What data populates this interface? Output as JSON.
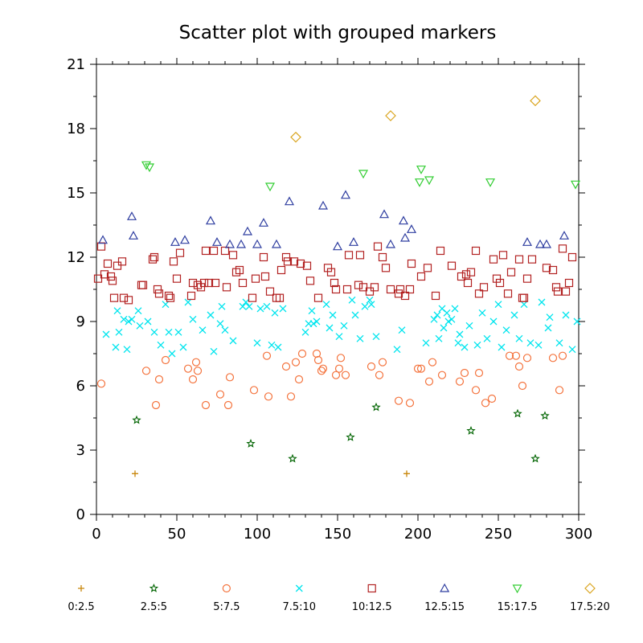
{
  "chart_data": {
    "type": "scatter",
    "title": "Scatter plot with grouped markers",
    "xlabel": "",
    "ylabel": "",
    "xlim": [
      0,
      300
    ],
    "ylim": [
      0,
      21
    ],
    "x_ticks": [
      0,
      50,
      100,
      150,
      200,
      250,
      300
    ],
    "y_ticks": [
      0,
      3,
      6,
      9,
      12,
      15,
      18,
      21
    ],
    "grid": false,
    "legend_position": "bottom",
    "series": [
      {
        "name": "0:2.5",
        "marker": "plus",
        "color": "#c8860a",
        "x": [
          24,
          193
        ],
        "y": [
          1.9,
          1.9
        ]
      },
      {
        "name": "2.5:5",
        "marker": "star",
        "color": "#006400",
        "x": [
          25,
          96,
          122,
          158,
          174,
          233,
          262,
          273,
          279
        ],
        "y": [
          4.4,
          3.3,
          2.6,
          3.6,
          5.0,
          3.9,
          4.7,
          2.6,
          4.6
        ]
      },
      {
        "name": "5:7.5",
        "marker": "circle",
        "color": "#f4733d",
        "x": [
          3,
          31,
          37,
          39,
          43,
          57,
          60,
          62,
          63,
          68,
          77,
          82,
          83,
          98,
          106,
          107,
          118,
          121,
          124,
          126,
          128,
          137,
          138,
          140,
          141,
          149,
          151,
          152,
          155,
          171,
          176,
          178,
          188,
          195,
          200,
          202,
          207,
          209,
          215,
          226,
          229,
          236,
          238,
          242,
          246,
          257,
          261,
          263,
          265,
          268,
          284,
          288,
          290
        ],
        "y": [
          6.1,
          6.7,
          5.1,
          6.3,
          7.2,
          6.8,
          6.3,
          7.1,
          6.7,
          5.1,
          5.6,
          5.1,
          6.4,
          5.8,
          7.4,
          5.5,
          6.9,
          5.5,
          7.1,
          6.3,
          7.5,
          7.5,
          7.2,
          6.7,
          6.8,
          6.5,
          6.8,
          7.3,
          6.5,
          6.9,
          6.5,
          7.1,
          5.3,
          5.2,
          6.8,
          6.8,
          6.2,
          7.1,
          6.5,
          6.2,
          6.6,
          5.8,
          6.6,
          5.2,
          5.4,
          7.4,
          7.4,
          6.9,
          6.0,
          7.3,
          7.3,
          5.8,
          7.4
        ]
      },
      {
        "name": "7.5:10",
        "marker": "x",
        "color": "#00e5ee",
        "x": [
          6,
          12,
          13,
          14,
          17,
          19,
          20,
          22,
          26,
          27,
          32,
          36,
          40,
          43,
          45,
          47,
          51,
          54,
          57,
          60,
          66,
          71,
          73,
          77,
          78,
          80,
          85,
          91,
          93,
          95,
          100,
          102,
          106,
          109,
          111,
          113,
          116,
          130,
          132,
          134,
          135,
          137,
          143,
          145,
          147,
          151,
          154,
          159,
          161,
          164,
          167,
          170,
          171,
          174,
          187,
          190,
          205,
          210,
          212,
          213,
          215,
          216,
          218,
          219,
          221,
          223,
          225,
          226,
          229,
          232,
          237,
          240,
          243,
          247,
          250,
          252,
          255,
          260,
          263,
          266,
          270,
          275,
          277,
          281,
          282,
          288,
          292,
          296,
          299
        ],
        "y": [
          8.4,
          7.8,
          9.5,
          8.5,
          9.1,
          7.7,
          9.0,
          9.1,
          9.5,
          8.8,
          9.0,
          8.5,
          7.9,
          9.8,
          8.5,
          7.5,
          8.5,
          7.8,
          9.9,
          9.1,
          8.6,
          9.3,
          7.6,
          8.9,
          9.7,
          8.6,
          8.1,
          9.7,
          9.9,
          9.7,
          8.0,
          9.6,
          9.7,
          7.9,
          9.4,
          7.8,
          9.6,
          8.5,
          8.9,
          9.5,
          8.9,
          9.0,
          9.8,
          8.7,
          9.3,
          8.3,
          8.8,
          10.0,
          9.3,
          8.2,
          9.7,
          10.0,
          9.8,
          8.3,
          7.7,
          8.6,
          8.0,
          9.1,
          9.3,
          8.2,
          9.6,
          8.7,
          9.4,
          9.0,
          9.1,
          9.6,
          8.0,
          8.4,
          7.8,
          8.8,
          7.9,
          9.4,
          8.2,
          9.0,
          9.8,
          7.8,
          8.6,
          9.3,
          8.2,
          9.8,
          8.0,
          7.9,
          9.9,
          8.7,
          9.2,
          8.0,
          9.3,
          7.7,
          9.0
        ]
      },
      {
        "name": "10:12.5",
        "marker": "square",
        "color": "#b22222",
        "x": [
          1,
          3,
          5,
          7,
          9,
          10,
          11,
          13,
          16,
          17,
          20,
          28,
          29,
          35,
          36,
          38,
          39,
          45,
          46,
          48,
          50,
          52,
          59,
          60,
          63,
          65,
          67,
          68,
          70,
          73,
          74,
          80,
          81,
          85,
          87,
          89,
          91,
          97,
          99,
          104,
          105,
          108,
          112,
          114,
          115,
          118,
          119,
          123,
          127,
          131,
          133,
          138,
          144,
          146,
          148,
          149,
          156,
          157,
          163,
          164,
          166,
          170,
          173,
          175,
          178,
          180,
          183,
          188,
          189,
          192,
          195,
          196,
          202,
          206,
          211,
          214,
          221,
          227,
          230,
          231,
          233,
          236,
          238,
          241,
          247,
          249,
          251,
          253,
          256,
          258,
          263,
          265,
          266,
          268,
          271,
          280,
          284,
          286,
          287,
          290,
          292,
          294,
          296
        ],
        "y": [
          11.0,
          12.5,
          11.2,
          11.7,
          11.1,
          10.9,
          10.1,
          11.6,
          11.8,
          10.1,
          10.0,
          10.7,
          10.7,
          11.9,
          12.0,
          10.5,
          10.3,
          10.2,
          10.1,
          11.8,
          11.0,
          12.2,
          10.2,
          10.8,
          10.7,
          10.6,
          10.8,
          12.3,
          10.8,
          12.3,
          10.8,
          12.3,
          10.6,
          12.1,
          11.3,
          11.4,
          10.8,
          10.1,
          11.0,
          12.0,
          11.1,
          10.4,
          10.1,
          10.1,
          11.4,
          12.0,
          11.8,
          11.8,
          11.7,
          11.6,
          10.9,
          10.1,
          11.5,
          11.3,
          10.8,
          10.5,
          10.5,
          12.1,
          10.7,
          12.1,
          10.6,
          10.4,
          10.6,
          12.5,
          12.0,
          11.5,
          10.5,
          10.3,
          10.5,
          10.2,
          10.5,
          11.7,
          11.1,
          11.5,
          10.2,
          12.3,
          11.6,
          11.1,
          11.2,
          10.8,
          11.3,
          12.3,
          10.3,
          10.6,
          11.9,
          11.0,
          10.8,
          12.1,
          10.3,
          11.3,
          11.9,
          10.1,
          10.1,
          11.0,
          11.9,
          11.5,
          11.4,
          10.6,
          10.4,
          12.4,
          10.4,
          10.8,
          12.0
        ]
      },
      {
        "name": "12.5:15",
        "marker": "triangle-up",
        "color": "#2f3ea0",
        "x": [
          4,
          22,
          23,
          49,
          55,
          71,
          75,
          83,
          90,
          94,
          100,
          104,
          112,
          120,
          141,
          150,
          155,
          160,
          179,
          183,
          191,
          192,
          196,
          268,
          276,
          280,
          291
        ],
        "y": [
          12.8,
          13.9,
          13.0,
          12.7,
          12.8,
          13.7,
          12.7,
          12.6,
          12.6,
          13.2,
          12.6,
          13.6,
          12.6,
          14.6,
          14.4,
          12.5,
          14.9,
          12.7,
          14.0,
          12.6,
          13.7,
          12.9,
          13.3,
          12.7,
          12.6,
          12.6,
          13.0
        ]
      },
      {
        "name": "15:17.5",
        "marker": "triangle-down",
        "color": "#32cd32",
        "x": [
          31,
          33,
          108,
          166,
          201,
          202,
          207,
          245,
          298
        ],
        "y": [
          16.3,
          16.2,
          15.3,
          15.9,
          15.5,
          16.1,
          15.6,
          15.5,
          15.4
        ]
      },
      {
        "name": "17.5:20",
        "marker": "diamond",
        "color": "#daa520",
        "x": [
          124,
          183,
          273
        ],
        "y": [
          17.6,
          18.6,
          19.3
        ]
      }
    ]
  }
}
